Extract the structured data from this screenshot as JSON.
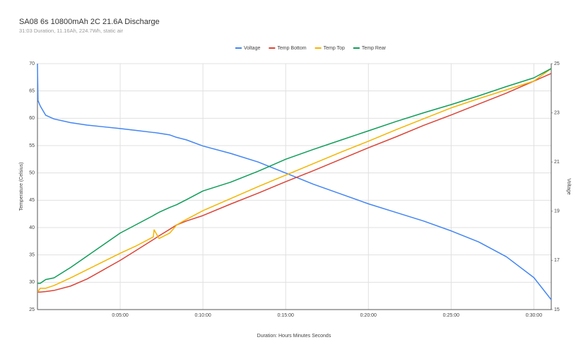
{
  "chart_data": {
    "type": "line",
    "title": "SA08 6s 10800mAh 2C 21.6A Discharge",
    "subtitle": "31:03 Duration, 11.16Ah, 224.7Wh, static air",
    "x_label": "Duration: Hours Minutes Seconds",
    "y_label": "Temperature (Celsius)",
    "y2_label": "Voltage",
    "x": [
      0,
      2,
      10,
      30,
      60,
      120,
      180,
      240,
      300,
      360,
      420,
      423,
      441,
      480,
      505,
      540,
      600,
      700,
      800,
      900,
      1000,
      1100,
      1200,
      1300,
      1400,
      1500,
      1600,
      1700,
      1800,
      1863
    ],
    "xlim": [
      0,
      1863
    ],
    "xticks": [
      {
        "value": 300,
        "label": "0:05:00"
      },
      {
        "value": 600,
        "label": "0:10:00"
      },
      {
        "value": 900,
        "label": "0:15:00"
      },
      {
        "value": 1200,
        "label": "0:20:00"
      },
      {
        "value": 1500,
        "label": "0:25:00"
      },
      {
        "value": 1800,
        "label": "0:30:00"
      }
    ],
    "ylim": [
      25,
      70
    ],
    "yticks": [
      25,
      30,
      35,
      40,
      45,
      50,
      55,
      60,
      65,
      70
    ],
    "y2lim": [
      15,
      25
    ],
    "y2ticks": [
      15,
      17,
      19,
      21,
      23,
      25
    ],
    "grid": true,
    "legend": "top",
    "series": [
      {
        "name": "Voltage",
        "color": "#4285f4",
        "axis": "y2",
        "values": [
          25,
          23.5,
          23.28,
          22.9,
          22.75,
          22.6,
          22.5,
          22.43,
          22.36,
          22.28,
          22.2,
          22.2,
          22.17,
          22.1,
          22.0,
          21.9,
          21.65,
          21.35,
          21.0,
          20.55,
          20.1,
          19.7,
          19.3,
          18.95,
          18.6,
          18.2,
          17.75,
          17.15,
          16.3,
          15.4
        ]
      },
      {
        "name": "Temp Bottom",
        "color": "#db4437",
        "values": [
          28.2,
          28.2,
          28.2,
          28.3,
          28.5,
          29.3,
          30.6,
          32.3,
          34.0,
          35.9,
          37.8,
          37.9,
          38.5,
          39.7,
          40.5,
          41.2,
          42.2,
          44.3,
          46.3,
          48.4,
          50.4,
          52.5,
          54.6,
          56.6,
          58.7,
          60.6,
          62.6,
          64.6,
          66.8,
          68.2
        ]
      },
      {
        "name": "Temp Top",
        "color": "#f4b400",
        "values": [
          28.3,
          28.3,
          28.9,
          28.9,
          29.4,
          30.8,
          32.3,
          33.8,
          35.3,
          36.7,
          38.3,
          39.6,
          38.0,
          39.0,
          40.5,
          41.5,
          43.1,
          45.3,
          47.5,
          49.6,
          51.7,
          53.8,
          55.8,
          57.9,
          59.9,
          61.9,
          63.6,
          65.2,
          66.8,
          69.1
        ]
      },
      {
        "name": "Temp Rear",
        "color": "#0f9d58",
        "values": [
          29.8,
          29.8,
          29.8,
          30.5,
          30.8,
          32.7,
          34.8,
          36.9,
          39.0,
          40.6,
          42.2,
          42.3,
          42.8,
          43.7,
          44.2,
          45.1,
          46.7,
          48.3,
          50.3,
          52.5,
          54.3,
          56.0,
          57.7,
          59.4,
          61.0,
          62.5,
          64.1,
          65.8,
          67.4,
          69.1
        ]
      }
    ]
  }
}
